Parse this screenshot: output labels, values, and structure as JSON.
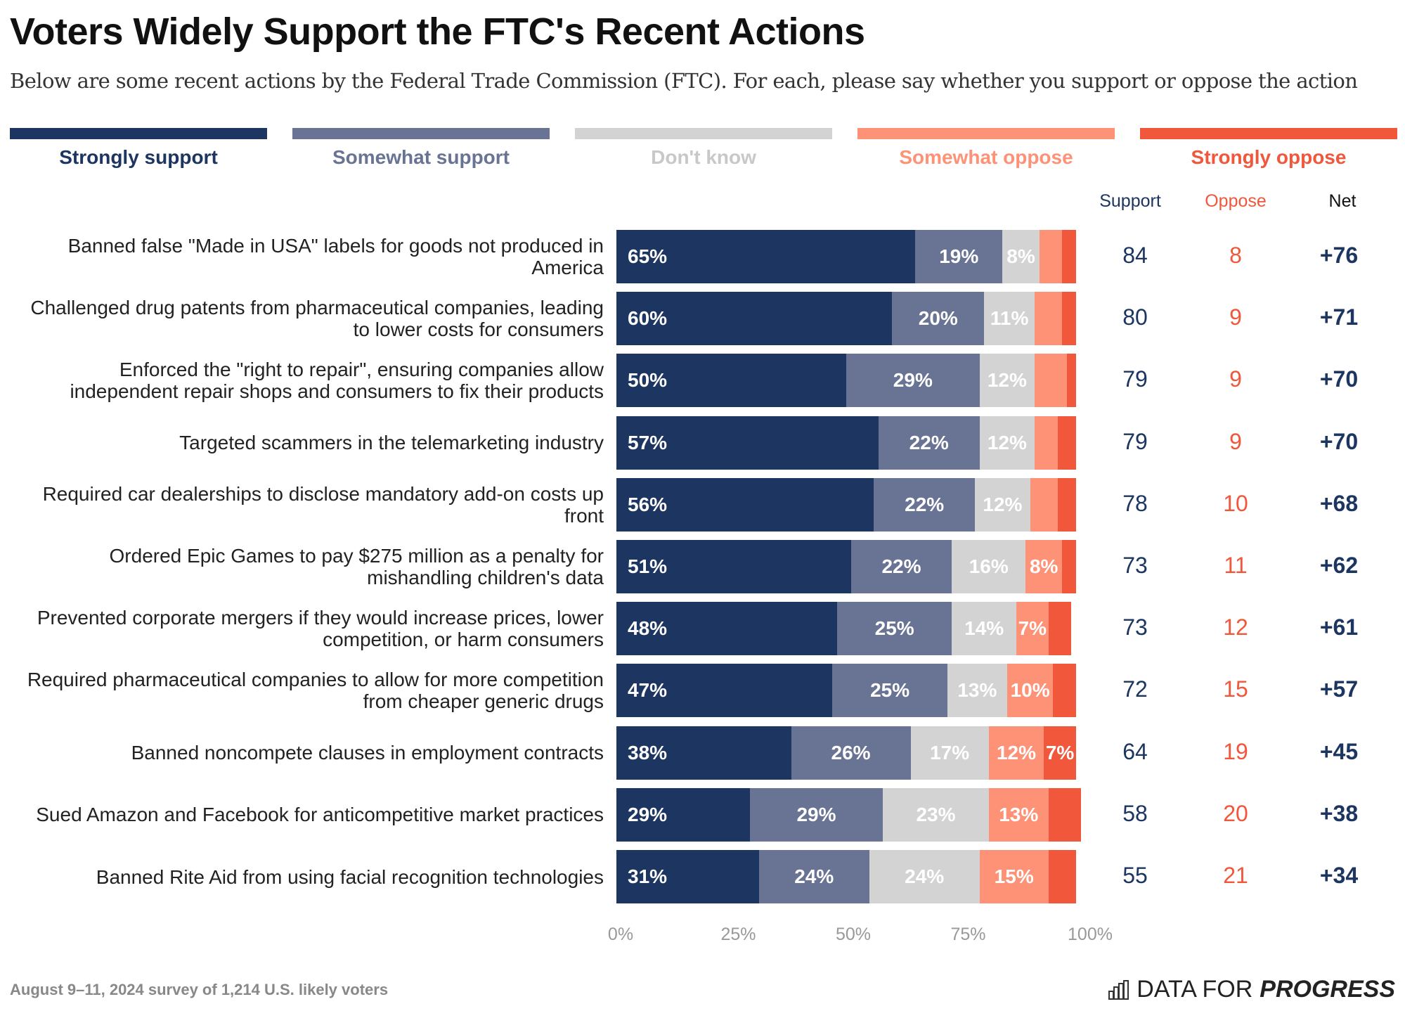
{
  "title": "Voters Widely Support the FTC's Recent Actions",
  "subtitle": "Below are some recent actions by the Federal Trade Commission (FTC). For each, please say whether you support or oppose the action",
  "footer": "August 9–11, 2024 survey of 1,214 U.S. likely voters",
  "logo": {
    "light": "DATA FOR",
    "bold": "PROGRESS"
  },
  "columns": {
    "support": "Support",
    "oppose": "Oppose",
    "net": "Net"
  },
  "chart_data": {
    "type": "bar",
    "orientation": "horizontal-stacked",
    "xlim": [
      0,
      100
    ],
    "xticks": [
      "0%",
      "25%",
      "50%",
      "75%",
      "100%"
    ],
    "legend": {
      "placement": "top"
    },
    "series": [
      {
        "name": "Strongly support",
        "color": "#1c3661",
        "values": [
          65,
          60,
          50,
          57,
          56,
          51,
          48,
          47,
          38,
          29,
          31
        ]
      },
      {
        "name": "Somewhat support",
        "color": "#697394",
        "values": [
          19,
          20,
          29,
          22,
          22,
          22,
          25,
          25,
          26,
          29,
          24
        ]
      },
      {
        "name": "Don't know",
        "color": "#d3d3d3",
        "values": [
          8,
          11,
          12,
          12,
          12,
          16,
          14,
          13,
          17,
          23,
          24
        ]
      },
      {
        "name": "Somewhat oppose",
        "color": "#fd9277",
        "values": [
          5,
          6,
          7,
          5,
          6,
          8,
          7,
          10,
          12,
          13,
          15
        ]
      },
      {
        "name": "Strongly oppose",
        "color": "#f0573b",
        "values": [
          3,
          3,
          2,
          4,
          4,
          3,
          5,
          5,
          7,
          7,
          6
        ]
      }
    ],
    "categories": [
      "Banned false \"Made in USA\" labels for goods not produced in America",
      "Challenged drug patents from pharmaceutical companies, leading to lower costs for consumers",
      "Enforced the \"right to repair\", ensuring companies allow independent repair shops and consumers to fix their products",
      "Targeted scammers in the telemarketing industry",
      "Required car dealerships to disclose mandatory add-on costs up front",
      "Ordered Epic Games to pay $275 million as a penalty for mishandling children's data",
      "Prevented corporate mergers if they would increase prices, lower competition, or harm consumers",
      "Required pharmaceutical companies to allow for more competition from cheaper generic drugs",
      "Banned noncompete clauses in employment contracts",
      "Sued Amazon and Facebook for anticompetitive market practices",
      "Banned Rite Aid from using facial recognition technologies"
    ],
    "labeled": [
      [
        1,
        1,
        1,
        0,
        0
      ],
      [
        1,
        1,
        1,
        0,
        0
      ],
      [
        1,
        1,
        1,
        0,
        0
      ],
      [
        1,
        1,
        1,
        0,
        0
      ],
      [
        1,
        1,
        1,
        0,
        0
      ],
      [
        1,
        1,
        1,
        1,
        0
      ],
      [
        1,
        1,
        1,
        1,
        0
      ],
      [
        1,
        1,
        1,
        1,
        0
      ],
      [
        1,
        1,
        1,
        1,
        1
      ],
      [
        1,
        1,
        1,
        1,
        0
      ],
      [
        1,
        1,
        1,
        1,
        0
      ]
    ],
    "support": [
      84,
      80,
      79,
      79,
      78,
      73,
      73,
      72,
      64,
      58,
      55
    ],
    "oppose": [
      8,
      9,
      9,
      9,
      10,
      11,
      12,
      15,
      19,
      20,
      21
    ],
    "net": [
      "+76",
      "+71",
      "+70",
      "+70",
      "+68",
      "+62",
      "+61",
      "+57",
      "+45",
      "+38",
      "+34"
    ]
  }
}
